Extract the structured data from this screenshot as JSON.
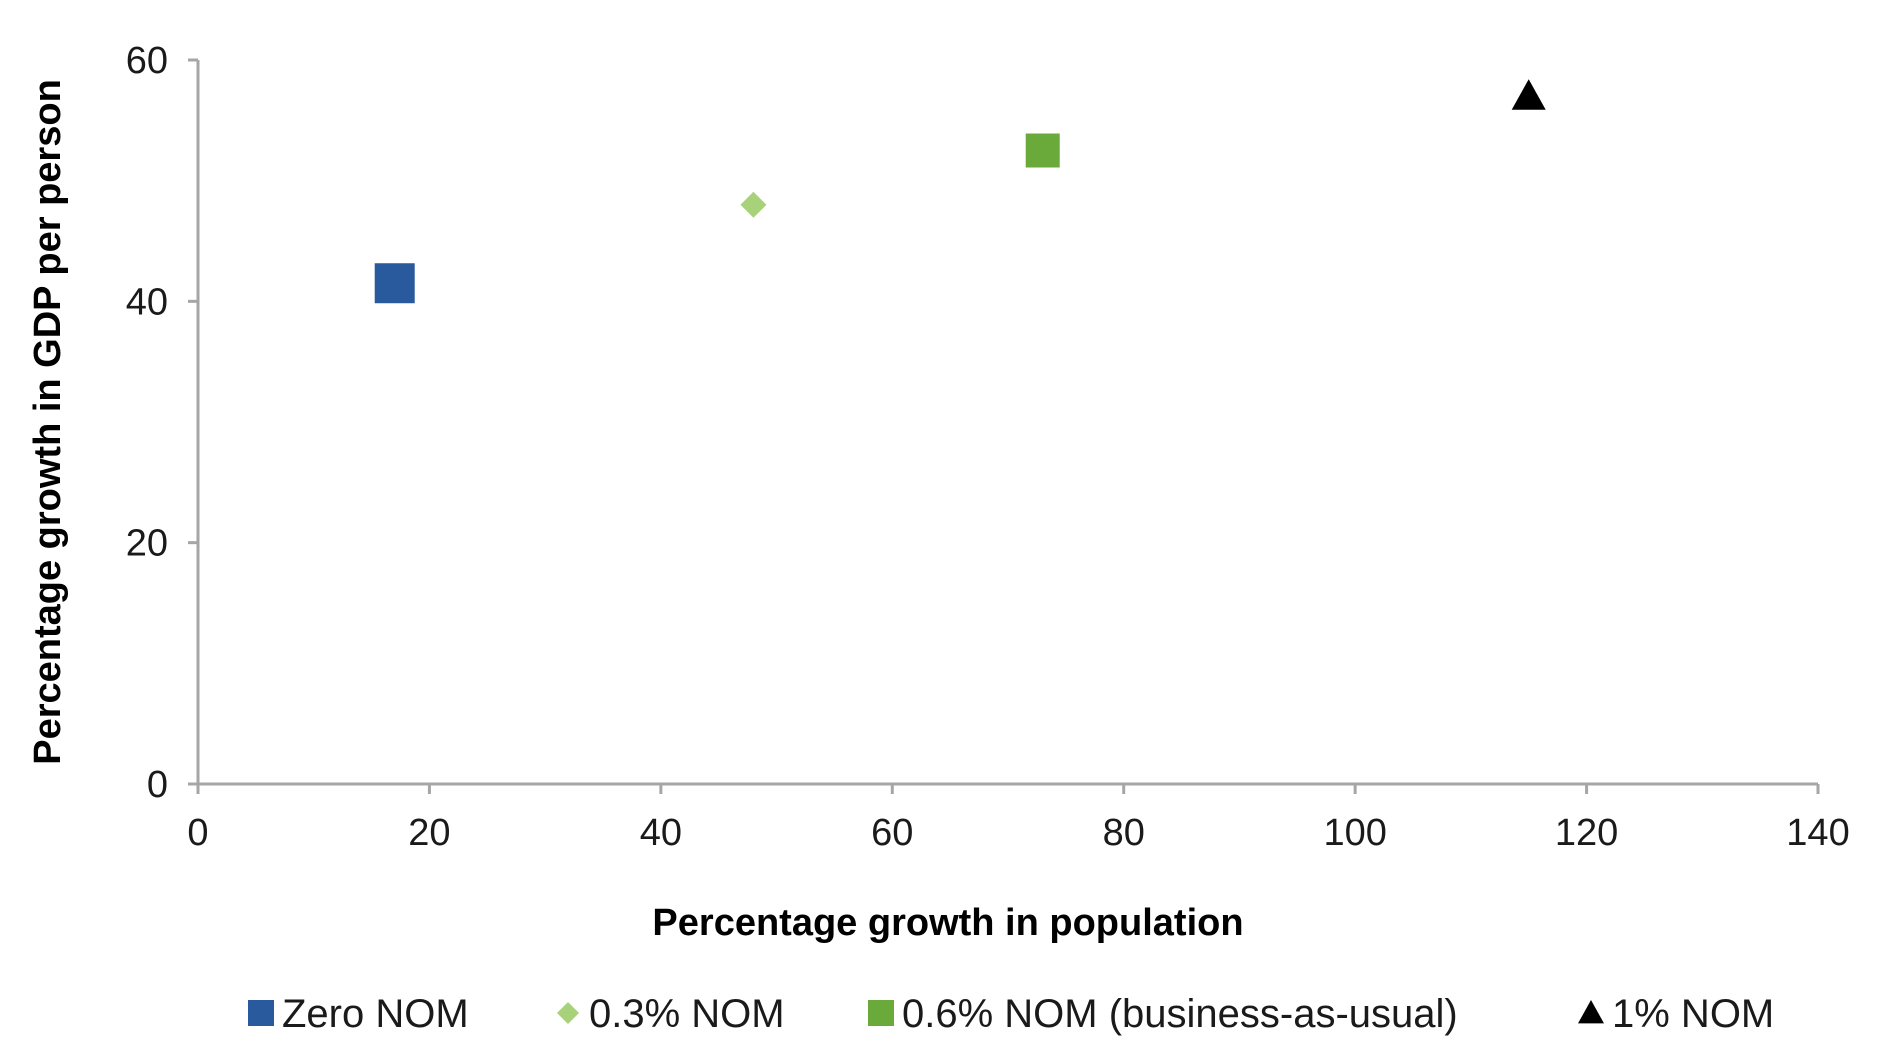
{
  "chart_data": {
    "type": "scatter",
    "title": "",
    "xlabel": "Percentage growth in population",
    "ylabel": "Percentage growth in GDP  per person",
    "xlim": [
      0,
      140
    ],
    "ylim": [
      0,
      60
    ],
    "xticks": [
      "0",
      "20",
      "40",
      "60",
      "80",
      "100",
      "120",
      "140"
    ],
    "yticks": [
      "0",
      "20",
      "40",
      "60"
    ],
    "grid": false,
    "legend_position": "bottom",
    "series": [
      {
        "name": "Zero NOM",
        "marker": "square",
        "color": "#2a5a9e",
        "size": "large",
        "points": [
          {
            "x": 17,
            "y": 41.5
          }
        ]
      },
      {
        "name": "0.3% NOM",
        "marker": "diamond",
        "color": "#a8d27a",
        "size": "small",
        "points": [
          {
            "x": 48,
            "y": 48
          }
        ]
      },
      {
        "name": "0.6% NOM (business-as-usual)",
        "marker": "square",
        "color": "#6aaa3a",
        "size": "medium",
        "points": [
          {
            "x": 73,
            "y": 52.5
          }
        ]
      },
      {
        "name": "1% NOM",
        "marker": "triangle",
        "color": "#000000",
        "size": "medium",
        "points": [
          {
            "x": 115,
            "y": 57
          }
        ]
      }
    ]
  }
}
